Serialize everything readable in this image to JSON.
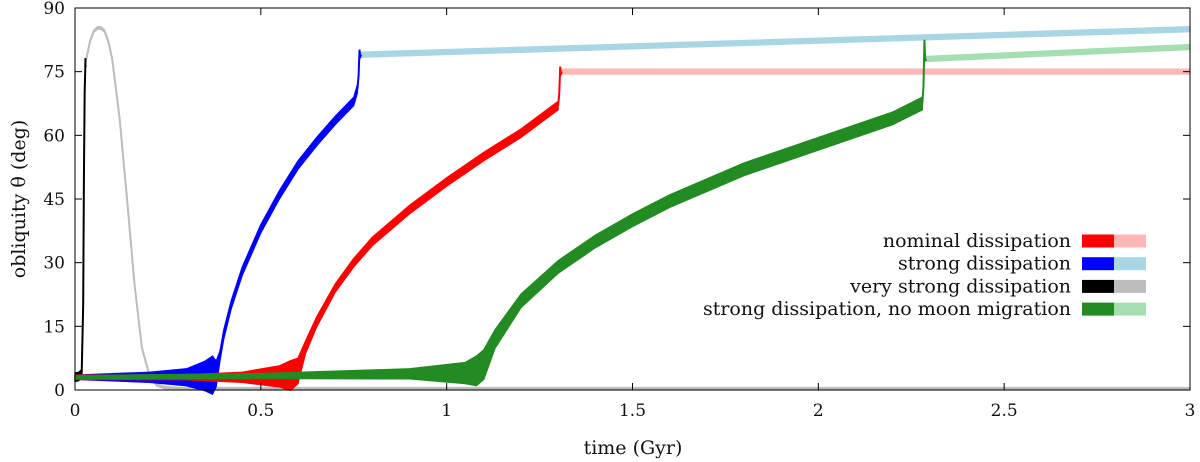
{
  "chart_data": {
    "type": "line",
    "title": "",
    "xlabel": "time (Gyr)",
    "ylabel": "obliquity θ (deg)",
    "xlim": [
      0,
      3
    ],
    "ylim": [
      0,
      90
    ],
    "xticks": [
      0,
      0.5,
      1,
      1.5,
      2,
      2.5,
      3
    ],
    "xtick_labels": [
      "0",
      "0.5",
      "1",
      "1.5",
      "2",
      "2.5",
      "3"
    ],
    "yticks": [
      0,
      15,
      30,
      45,
      60,
      75,
      90
    ],
    "ytick_labels": [
      "0",
      "15",
      "30",
      "45",
      "60",
      "75",
      "90"
    ],
    "legend_position": "center-right",
    "series": [
      {
        "name": "very strong dissipation",
        "color_dark": "#000000",
        "color_light": "#bdbdbd",
        "dark": {
          "x": [
            0.0,
            0.01,
            0.018,
            0.022,
            0.024,
            0.026,
            0.028
          ],
          "y": [
            3.0,
            3.2,
            4.0,
            20.0,
            50.0,
            70.0,
            77.0
          ],
          "band": [
            1.0,
            1.0,
            0.8,
            0.5,
            0.3,
            0.3,
            0.3
          ]
        },
        "light": {
          "x": [
            0.028,
            0.04,
            0.05,
            0.06,
            0.07,
            0.08,
            0.09,
            0.1,
            0.12,
            0.14,
            0.16,
            0.18,
            0.2,
            0.22,
            0.24,
            0.26,
            0.3,
            0.5,
            1.0,
            2.0,
            3.0
          ],
          "y": [
            77,
            82,
            84.5,
            85.3,
            85.3,
            84.5,
            82,
            78,
            64,
            45,
            25,
            10,
            3.5,
            1.2,
            0.6,
            0.4,
            0.3,
            0.3,
            0.3,
            0.3,
            0.3
          ],
          "band": 0.3
        }
      },
      {
        "name": "strong dissipation",
        "color_dark": "#0000ff",
        "color_light": "#a9d6e5",
        "dark": {
          "x": [
            0.0,
            0.2,
            0.3,
            0.35,
            0.37,
            0.38,
            0.39,
            0.4,
            0.42,
            0.45,
            0.5,
            0.55,
            0.6,
            0.65,
            0.7,
            0.75,
            0.76
          ],
          "y": [
            3.0,
            3.0,
            3.0,
            3.3,
            3.5,
            3.8,
            8.0,
            13.0,
            20.0,
            28.0,
            38.0,
            46.0,
            53.0,
            58.5,
            63.5,
            68.0,
            71.0
          ],
          "band": [
            0.5,
            1.2,
            2.0,
            3.5,
            4.5,
            3.0,
            1.2,
            1.1,
            1.0,
            1.0,
            1.0,
            1.0,
            1.0,
            1.0,
            1.0,
            1.0,
            1.0
          ]
        },
        "light": {
          "x": [
            0.77,
            3.0
          ],
          "y": [
            79.0,
            85.0
          ],
          "band": 0.6
        }
      },
      {
        "name": "nominal dissipation",
        "color_dark": "#ff0000",
        "color_light": "#ffb6b6",
        "dark": {
          "x": [
            0.0,
            0.3,
            0.45,
            0.55,
            0.58,
            0.6,
            0.62,
            0.65,
            0.7,
            0.75,
            0.8,
            0.9,
            1.0,
            1.1,
            1.2,
            1.3
          ],
          "y": [
            3.0,
            3.0,
            3.0,
            3.2,
            3.4,
            4.5,
            10.0,
            16.0,
            24.0,
            30.0,
            35.0,
            42.5,
            49.0,
            55.0,
            60.5,
            67.0
          ],
          "band": [
            0.5,
            0.6,
            1.2,
            2.5,
            3.5,
            3.0,
            1.5,
            1.2,
            1.0,
            1.0,
            1.0,
            1.0,
            1.0,
            1.0,
            1.0,
            1.0
          ]
        },
        "light": {
          "x": [
            1.31,
            3.0
          ],
          "y": [
            75.0,
            75.0
          ],
          "band": 0.6
        }
      },
      {
        "name": "strong dissipation, no moon migration",
        "color_dark": "#228b22",
        "color_light": "#a5dfb0",
        "dark": {
          "x": [
            0.0,
            0.5,
            0.9,
            1.05,
            1.08,
            1.1,
            1.13,
            1.2,
            1.3,
            1.4,
            1.5,
            1.6,
            1.8,
            2.0,
            2.2,
            2.28
          ],
          "y": [
            3.0,
            3.3,
            3.8,
            4.0,
            4.5,
            6.0,
            12.0,
            21.0,
            29.0,
            35.0,
            40.0,
            44.5,
            52.0,
            58.0,
            64.0,
            67.5
          ],
          "band": [
            0.4,
            0.6,
            1.2,
            2.5,
            3.5,
            3.5,
            2.2,
            1.6,
            1.5,
            1.5,
            1.5,
            1.5,
            1.5,
            1.5,
            1.5,
            1.5
          ]
        },
        "light": {
          "x": [
            2.29,
            3.0
          ],
          "y": [
            78.0,
            80.8
          ],
          "band": 0.6
        }
      }
    ],
    "legend": [
      {
        "label": "nominal dissipation",
        "color_dark": "#ff0000",
        "color_light": "#ffb6b6"
      },
      {
        "label": "strong dissipation",
        "color_dark": "#0000ff",
        "color_light": "#a9d6e5"
      },
      {
        "label": "very strong dissipation",
        "color_dark": "#000000",
        "color_light": "#bdbdbd"
      },
      {
        "label": "strong dissipation, no moon migration",
        "color_dark": "#228b22",
        "color_light": "#a5dfb0"
      }
    ]
  }
}
